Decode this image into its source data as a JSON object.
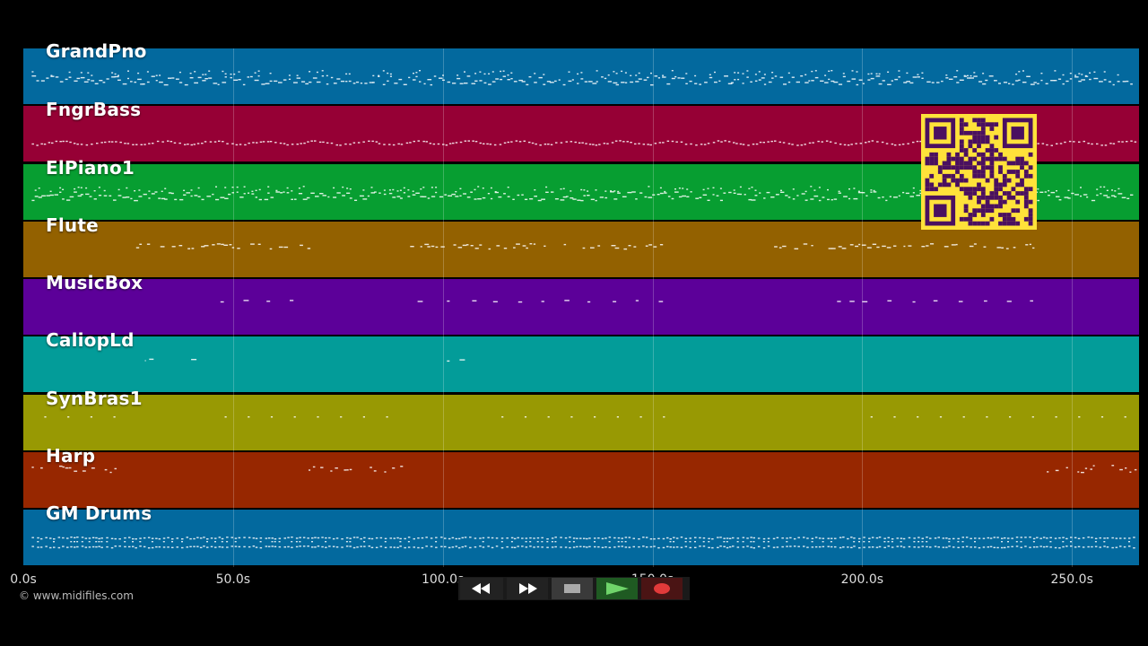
{
  "timeline": {
    "duration_s": 266,
    "ticks": [
      {
        "value": 0,
        "label": "0.0s"
      },
      {
        "value": 50,
        "label": "50.0s"
      },
      {
        "value": 100,
        "label": "100.0s"
      },
      {
        "value": 150,
        "label": "150.0s"
      },
      {
        "value": 200,
        "label": "200.0s"
      },
      {
        "value": 250,
        "label": "250.0s"
      }
    ]
  },
  "tracks": [
    {
      "name": "GrandPno",
      "color": "#03699e",
      "density": "dense"
    },
    {
      "name": "FngrBass",
      "color": "#960035",
      "density": "line"
    },
    {
      "name": "ElPiano1",
      "color": "#079e31",
      "density": "dense"
    },
    {
      "name": "Flute",
      "color": "#936100",
      "density": "phrases"
    },
    {
      "name": "MusicBox",
      "color": "#5c0099",
      "density": "sparse"
    },
    {
      "name": "CaliopLd",
      "color": "#039c99",
      "density": "rare"
    },
    {
      "name": "SynBras1",
      "color": "#989903",
      "density": "dots"
    },
    {
      "name": "Harp",
      "color": "#972700",
      "density": "phrases-sparse"
    },
    {
      "name": "GM Drums",
      "color": "#03699e",
      "density": "drums"
    }
  ],
  "copyright": "© www.midifiles.com",
  "transport": {
    "buttons": [
      {
        "name": "rewind-button",
        "icon": "rewind-icon"
      },
      {
        "name": "fast-forward-button",
        "icon": "fast-forward-icon"
      },
      {
        "name": "stop-button",
        "icon": "stop-icon"
      },
      {
        "name": "play-button",
        "icon": "play-icon"
      },
      {
        "name": "record-button",
        "icon": "record-icon"
      }
    ]
  },
  "overlay": {
    "qr_color": "#ffe23a",
    "qr_dark": "#4a1060"
  }
}
